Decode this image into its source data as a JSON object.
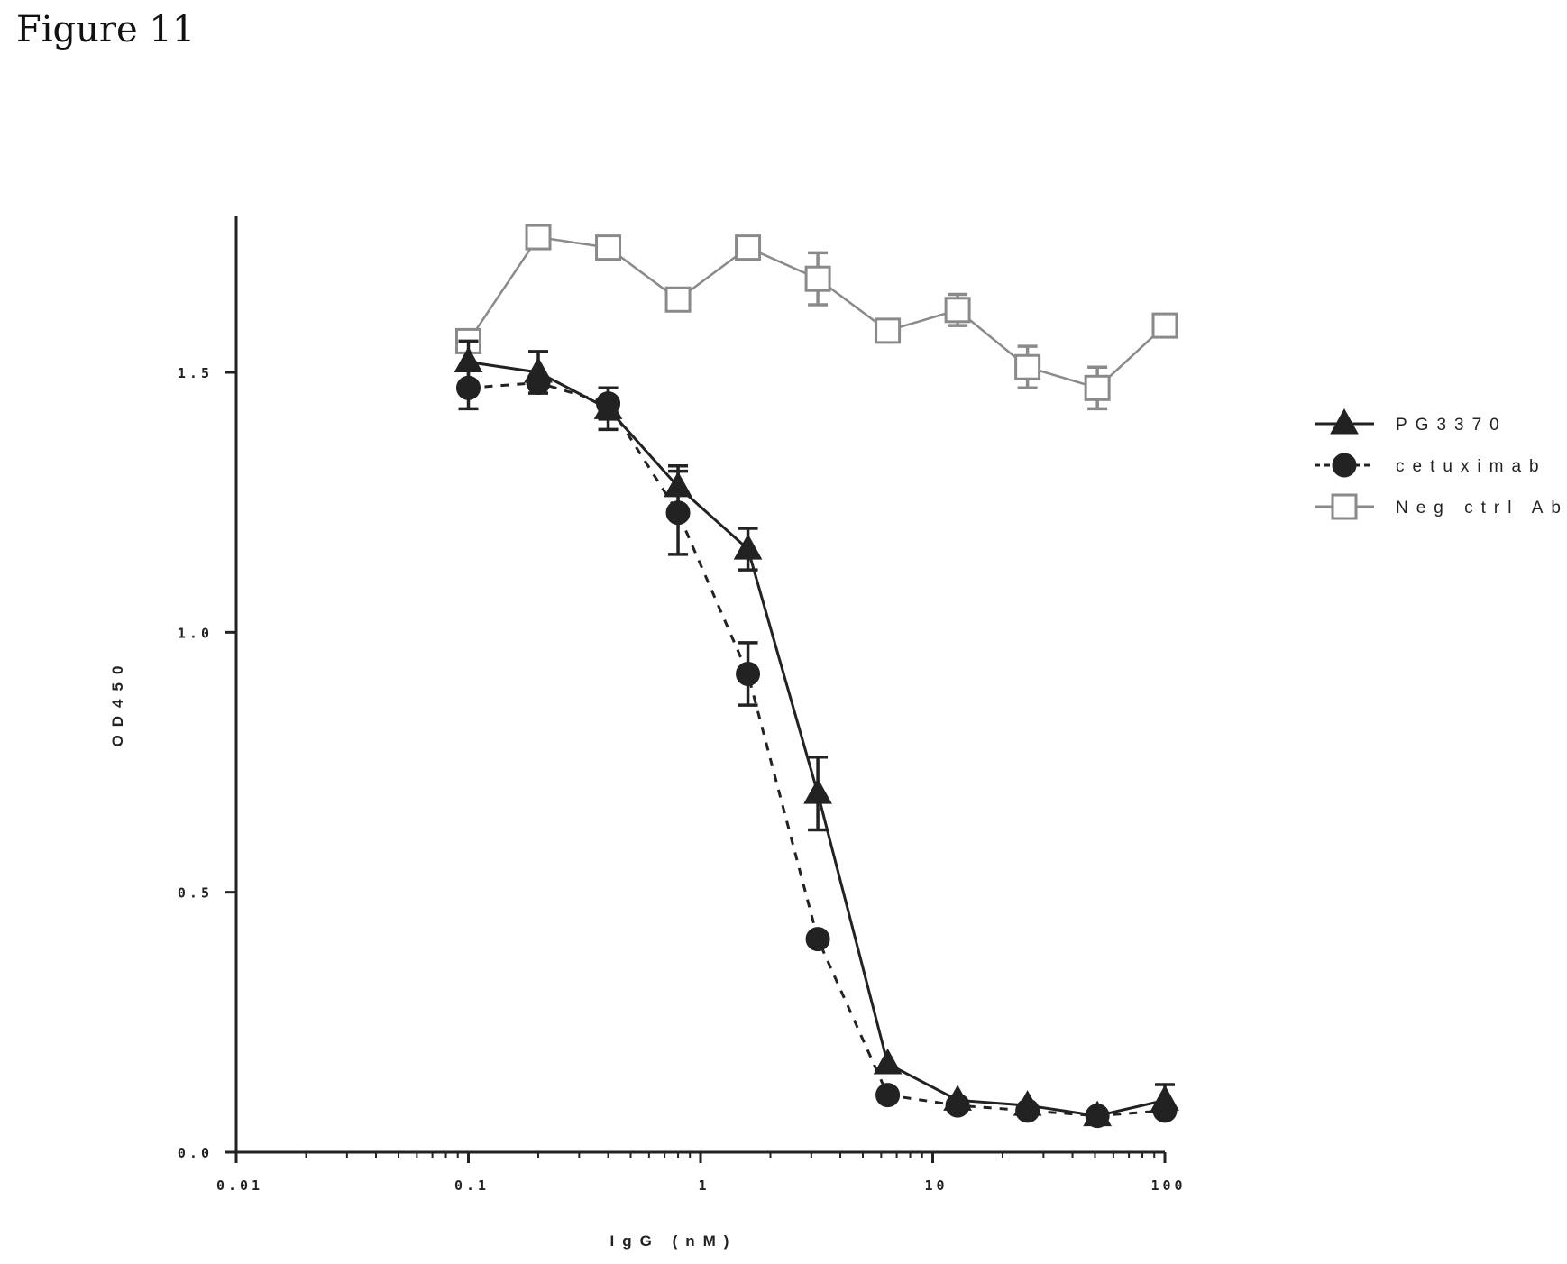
{
  "figure_label": "Figure 11",
  "chart_data": {
    "type": "line",
    "title": "",
    "xlabel": "IgG (nM)",
    "ylabel": "OD450",
    "x_scale": "log",
    "xlim": [
      0.01,
      100
    ],
    "ylim": [
      0,
      1.8
    ],
    "x_ticks": [
      0.01,
      0.1,
      1,
      10,
      100
    ],
    "x_tick_labels": [
      "0.01",
      "0.1",
      "1",
      "10",
      "100"
    ],
    "y_ticks": [
      0,
      0.5,
      1.0,
      1.5
    ],
    "y_tick_labels": [
      "0.0",
      "0.5",
      "1.0",
      "1.5"
    ],
    "grid": false,
    "legend_position": "right",
    "x": [
      0.1,
      0.2,
      0.4,
      0.8,
      1.6,
      3.2,
      6.4,
      12.8,
      25.6,
      51.2,
      100
    ],
    "series": [
      {
        "name": "PG3370",
        "marker": "triangle",
        "line_style": "solid",
        "color": "#222222",
        "values": [
          1.52,
          1.5,
          1.43,
          1.28,
          1.16,
          0.69,
          0.17,
          0.1,
          0.09,
          0.07,
          0.1
        ],
        "errors": [
          0.04,
          0.04,
          0.04,
          0.04,
          0.04,
          0.07,
          0.0,
          0.0,
          0.0,
          0.0,
          0.03
        ]
      },
      {
        "name": "cetuximab",
        "marker": "circle",
        "line_style": "dashed",
        "color": "#222222",
        "values": [
          1.47,
          1.48,
          1.44,
          1.23,
          0.92,
          0.41,
          0.11,
          0.09,
          0.08,
          0.07,
          0.08
        ],
        "errors": [
          0.04,
          0.0,
          0.03,
          0.08,
          0.06,
          0.0,
          0.0,
          0.0,
          0.0,
          0.0,
          0.0
        ]
      },
      {
        "name": "Neg ctrl Ab",
        "marker": "open-square",
        "line_style": "solid",
        "color": "#8a8a8a",
        "values": [
          1.56,
          1.76,
          1.74,
          1.64,
          1.74,
          1.68,
          1.58,
          1.62,
          1.51,
          1.47,
          1.59
        ],
        "errors": [
          0.0,
          0.0,
          0.0,
          0.0,
          0.0,
          0.05,
          0.0,
          0.03,
          0.04,
          0.04,
          0.0
        ]
      }
    ]
  }
}
